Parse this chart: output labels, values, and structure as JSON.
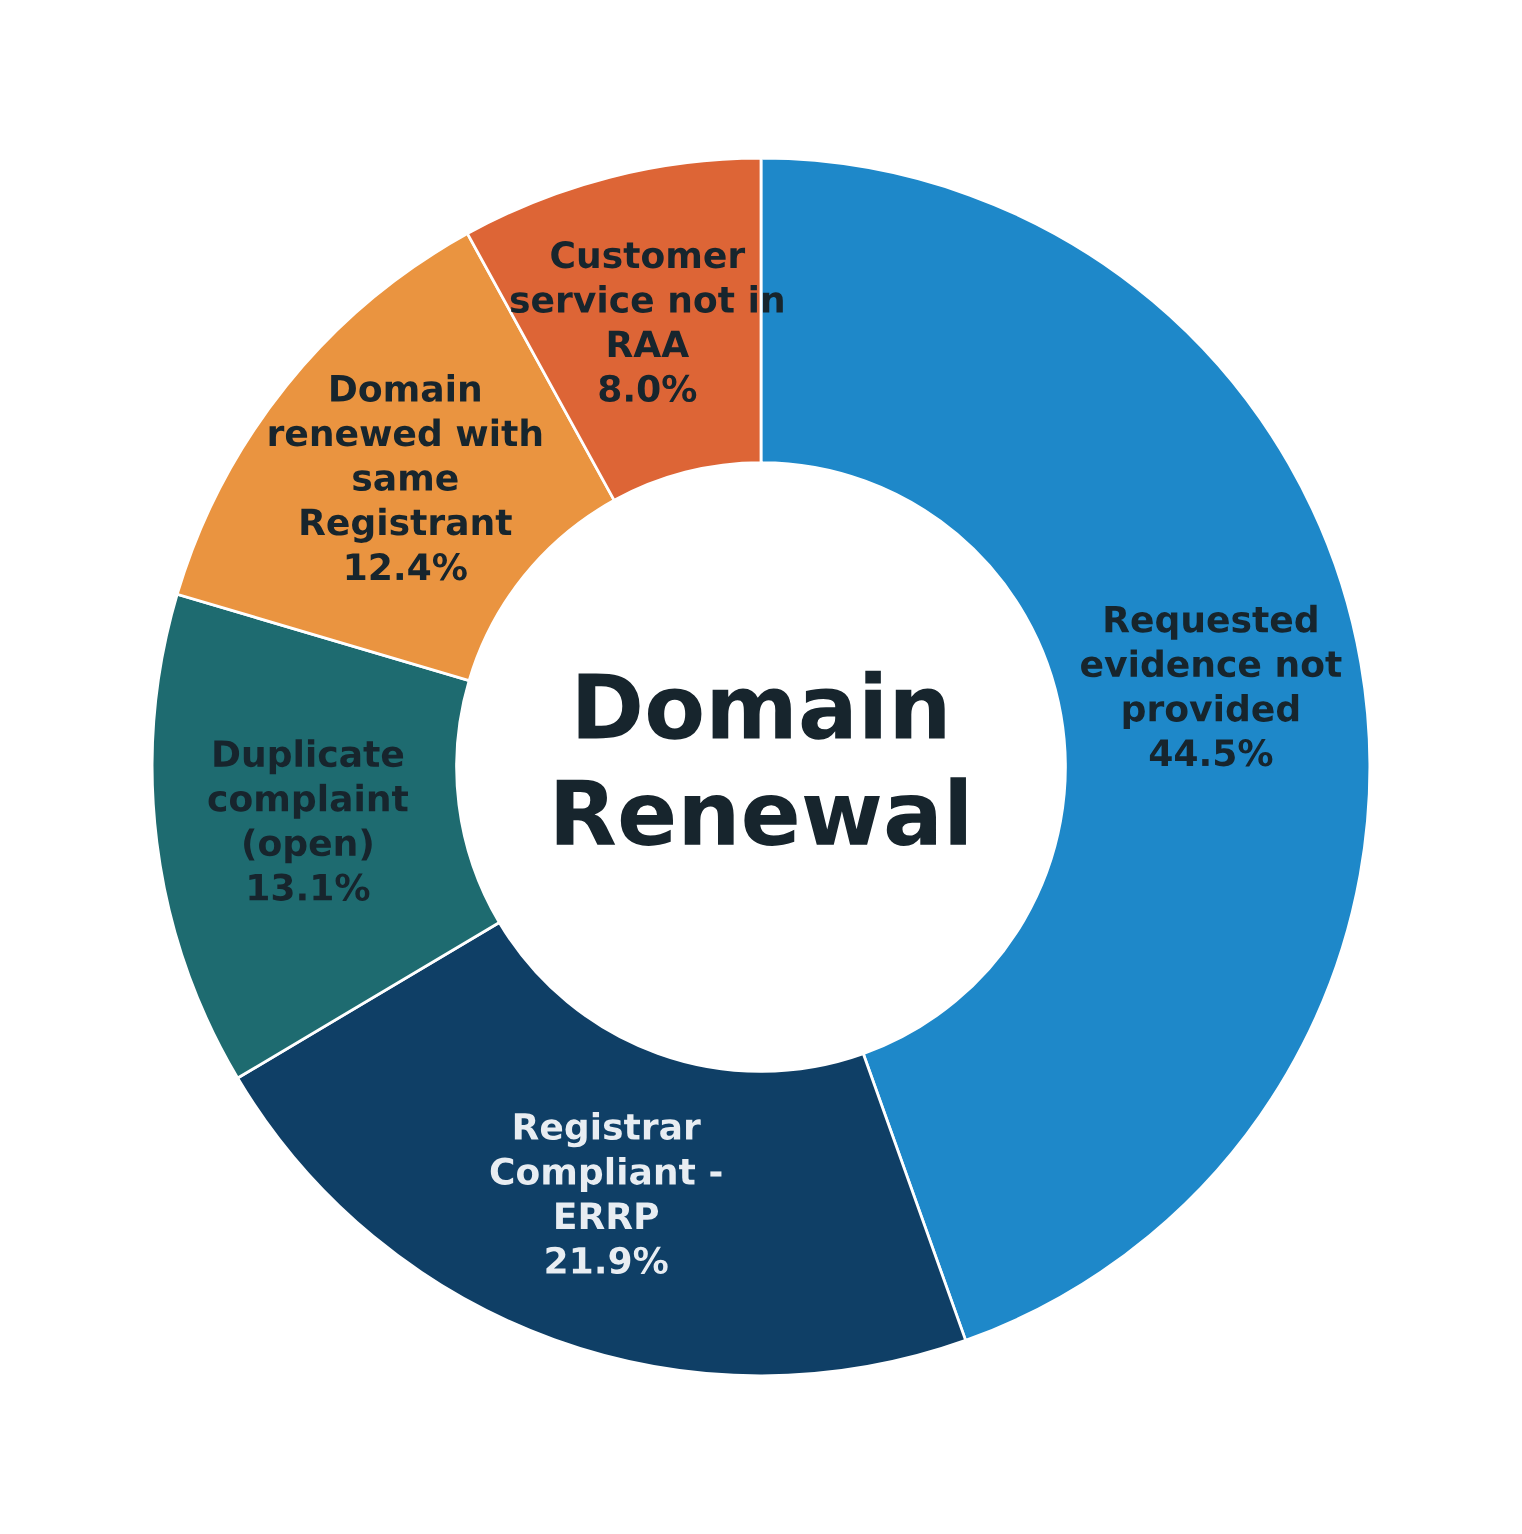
{
  "chart_data": {
    "type": "donut",
    "title": "Domain\nRenewal",
    "categories": [
      "Requested\nevidence not\nprovided",
      "Registrar\nCompliant -\nERRP",
      "Duplicate\ncomplaint\n(open)",
      "Domain\nrenewed with\nsame\nRegistrant",
      "Customer\nservice not in\nRAA"
    ],
    "values": [
      44.5,
      21.9,
      13.1,
      12.4,
      8.0
    ],
    "value_labels": [
      "44.5%",
      "21.9%",
      "13.1%",
      "12.4%",
      "8.0%"
    ],
    "colors": [
      "#1e88c9",
      "#0f3f66",
      "#1e6b70",
      "#ea9440",
      "#dd6536"
    ],
    "legend": false
  }
}
